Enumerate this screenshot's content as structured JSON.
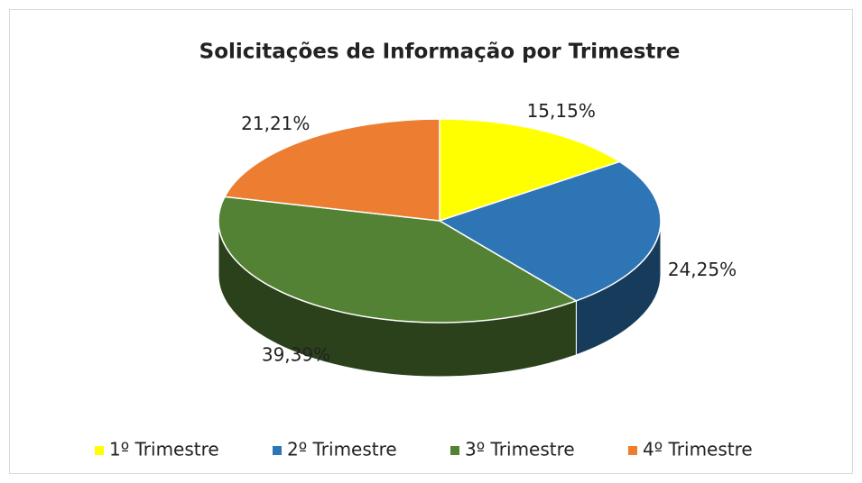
{
  "chart_data": {
    "type": "pie3d",
    "title": "Solicitações de Informação por Trimestre",
    "categories": [
      "1º Trimestre",
      "2º Trimestre",
      "3º Trimestre",
      "4º Trimestre"
    ],
    "values": [
      15.15,
      24.25,
      39.39,
      21.21
    ],
    "value_labels": [
      "15,15%",
      "24,25%",
      "39,39%",
      "21,21%"
    ],
    "colors": [
      "#ffff00",
      "#2e75b6",
      "#548235",
      "#ed7d31"
    ],
    "legend": "bottom"
  }
}
